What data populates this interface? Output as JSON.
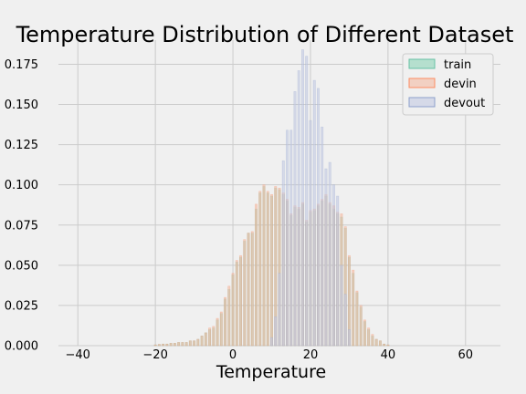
{
  "chart_data": {
    "type": "bar",
    "title": "Temperature Distribution of Different Dataset",
    "xlabel": "Temperature",
    "ylabel": "",
    "xlim": [
      -45,
      69
    ],
    "ylim": [
      0,
      0.19
    ],
    "xticks": [
      -40,
      -20,
      0,
      20,
      40,
      60
    ],
    "yticks": [
      0.0,
      0.025,
      0.05,
      0.075,
      0.1,
      0.125,
      0.15,
      0.175
    ],
    "ytick_labels": [
      "0.000",
      "0.025",
      "0.050",
      "0.075",
      "0.100",
      "0.125",
      "0.150",
      "0.175"
    ],
    "grid": true,
    "legend_position": "top-right",
    "bin_width": 1,
    "series": [
      {
        "name": "train",
        "color": "#8dd3b8",
        "edge": "#66c2a5",
        "x": [
          -20,
          -19,
          -18,
          -17,
          -16,
          -15,
          -14,
          -13,
          -12,
          -11,
          -10,
          -9,
          -8,
          -7,
          -6,
          -5,
          -4,
          -3,
          -2,
          -1,
          0,
          1,
          2,
          3,
          4,
          5,
          6,
          7,
          8,
          9,
          10,
          11,
          12,
          13,
          14,
          15,
          16,
          17,
          18,
          19,
          20,
          21,
          22,
          23,
          24,
          25,
          26,
          27,
          28,
          29,
          30,
          31,
          32,
          33,
          34,
          35,
          36,
          37,
          38,
          39,
          40
        ],
        "values": [
          0.0005,
          0.0008,
          0.001,
          0.001,
          0.0015,
          0.0015,
          0.002,
          0.002,
          0.002,
          0.003,
          0.003,
          0.004,
          0.006,
          0.008,
          0.01,
          0.011,
          0.016,
          0.02,
          0.029,
          0.035,
          0.044,
          0.052,
          0.055,
          0.065,
          0.07,
          0.07,
          0.085,
          0.095,
          0.099,
          0.095,
          0.093,
          0.098,
          0.097,
          0.094,
          0.09,
          0.081,
          0.086,
          0.085,
          0.088,
          0.077,
          0.083,
          0.084,
          0.087,
          0.09,
          0.093,
          0.088,
          0.085,
          0.082,
          0.08,
          0.073,
          0.055,
          0.045,
          0.033,
          0.024,
          0.015,
          0.01,
          0.006,
          0.004,
          0.003,
          0.001,
          0.0005
        ]
      },
      {
        "name": "devin",
        "color": "#f4bba3",
        "edge": "#fc8d62",
        "x": [
          -20,
          -19,
          -18,
          -17,
          -16,
          -15,
          -14,
          -13,
          -12,
          -11,
          -10,
          -9,
          -8,
          -7,
          -6,
          -5,
          -4,
          -3,
          -2,
          -1,
          0,
          1,
          2,
          3,
          4,
          5,
          6,
          7,
          8,
          9,
          10,
          11,
          12,
          13,
          14,
          15,
          16,
          17,
          18,
          19,
          20,
          21,
          22,
          23,
          24,
          25,
          26,
          27,
          28,
          29,
          30,
          31,
          32,
          33,
          34,
          35,
          36,
          37,
          38,
          39,
          40
        ],
        "values": [
          0.0005,
          0.0008,
          0.001,
          0.001,
          0.0015,
          0.0015,
          0.002,
          0.002,
          0.002,
          0.003,
          0.003,
          0.004,
          0.006,
          0.008,
          0.011,
          0.012,
          0.017,
          0.021,
          0.03,
          0.037,
          0.045,
          0.053,
          0.056,
          0.066,
          0.07,
          0.071,
          0.088,
          0.096,
          0.1,
          0.096,
          0.094,
          0.099,
          0.098,
          0.095,
          0.091,
          0.082,
          0.087,
          0.086,
          0.089,
          0.078,
          0.084,
          0.085,
          0.088,
          0.091,
          0.094,
          0.089,
          0.087,
          0.083,
          0.082,
          0.074,
          0.056,
          0.047,
          0.034,
          0.025,
          0.016,
          0.011,
          0.007,
          0.004,
          0.003,
          0.001,
          0.0005
        ]
      },
      {
        "name": "devout",
        "color": "#c3c9e3",
        "edge": "#8da0cb",
        "x": [
          10,
          11,
          12,
          13,
          14,
          15,
          16,
          17,
          18,
          19,
          20,
          21,
          22,
          23,
          24,
          25,
          26,
          27,
          28,
          29,
          30
        ],
        "values": [
          0.005,
          0.018,
          0.045,
          0.115,
          0.134,
          0.134,
          0.158,
          0.171,
          0.184,
          0.18,
          0.14,
          0.165,
          0.16,
          0.136,
          0.11,
          0.114,
          0.1,
          0.093,
          0.05,
          0.032,
          0.01
        ]
      }
    ]
  }
}
